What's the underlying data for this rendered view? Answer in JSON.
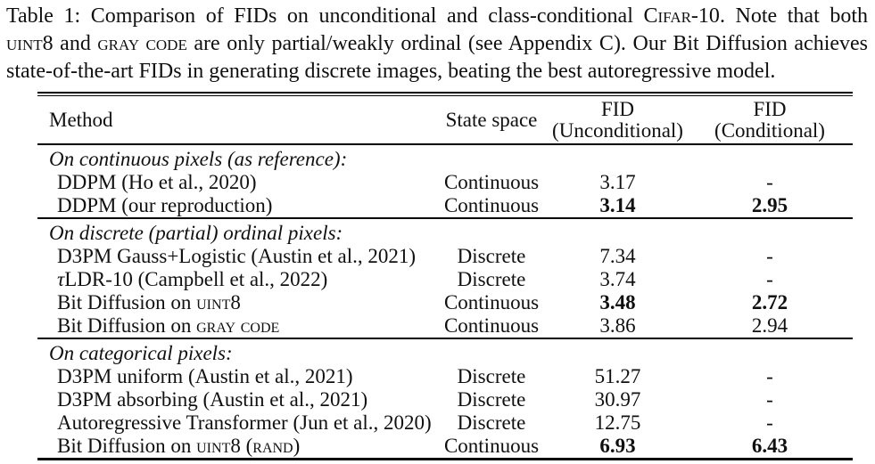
{
  "colors": {
    "text": "#101010",
    "background": "#ffffff",
    "rule": "#000000"
  },
  "caption": {
    "lines": [
      {
        "segments": [
          {
            "t": "Table 1: Comparison of FIDs on unconditional and class-conditional "
          },
          {
            "t": "Cifar-10",
            "s": "sc"
          },
          {
            "t": ". Note that both"
          }
        ]
      },
      {
        "segments": [
          {
            "t": "uint8",
            "s": "sc"
          },
          {
            "t": " and "
          },
          {
            "t": "gray code",
            "s": "sc"
          },
          {
            "t": " are only partial/weakly ordinal (see Appendix C). Our Bit Diffusion achieves"
          }
        ]
      },
      {
        "segments": [
          {
            "t": "state-of-the-art FIDs in generating discrete images, beating the best autoregressive model."
          }
        ]
      }
    ]
  },
  "table": {
    "columns": {
      "method": "Method",
      "state_space": "State space",
      "fid_unconditional": [
        "FID",
        "(Unconditional)"
      ],
      "fid_conditional": [
        "FID",
        "(Conditional)"
      ]
    },
    "sections": [
      {
        "title": "On continuous pixels (as reference):",
        "rows": [
          {
            "method": [
              {
                "t": "DDPM (Ho et al., 2020)"
              }
            ],
            "state_space": "Continuous",
            "fid_unconditional": "3.17",
            "fid_conditional": "-",
            "bold_fids": false
          },
          {
            "method": [
              {
                "t": "DDPM (our reproduction)"
              }
            ],
            "state_space": "Continuous",
            "fid_unconditional": "3.14",
            "fid_conditional": "2.95",
            "bold_fids": true
          }
        ]
      },
      {
        "title": "On discrete (partial) ordinal pixels:",
        "rows": [
          {
            "method": [
              {
                "t": "D3PM Gauss+Logistic (Austin et al., 2021)"
              }
            ],
            "state_space": "Discrete",
            "fid_unconditional": "7.34",
            "fid_conditional": "-",
            "bold_fids": false
          },
          {
            "method": [
              {
                "t": "τ",
                "s": "it"
              },
              {
                "t": "LDR-10 (Campbell et al., 2022)"
              }
            ],
            "state_space": "Discrete",
            "fid_unconditional": "3.74",
            "fid_conditional": "-",
            "bold_fids": false
          },
          {
            "method": [
              {
                "t": "Bit Diffusion on "
              },
              {
                "t": "uint8",
                "s": "sc"
              }
            ],
            "state_space": "Continuous",
            "fid_unconditional": "3.48",
            "fid_conditional": "2.72",
            "bold_fids": true
          },
          {
            "method": [
              {
                "t": "Bit Diffusion on "
              },
              {
                "t": "gray code",
                "s": "sc"
              }
            ],
            "state_space": "Continuous",
            "fid_unconditional": "3.86",
            "fid_conditional": "2.94",
            "bold_fids": false
          }
        ]
      },
      {
        "title": "On categorical pixels:",
        "rows": [
          {
            "method": [
              {
                "t": "D3PM uniform (Austin et al., 2021)"
              }
            ],
            "state_space": "Discrete",
            "fid_unconditional": "51.27",
            "fid_conditional": "-",
            "bold_fids": false
          },
          {
            "method": [
              {
                "t": "D3PM absorbing (Austin et al., 2021)"
              }
            ],
            "state_space": "Discrete",
            "fid_unconditional": "30.97",
            "fid_conditional": "-",
            "bold_fids": false
          },
          {
            "method": [
              {
                "t": "Autoregressive Transformer (Jun et al., 2020)"
              }
            ],
            "state_space": "Discrete",
            "fid_unconditional": "12.75",
            "fid_conditional": "-",
            "bold_fids": false
          },
          {
            "method": [
              {
                "t": "Bit Diffusion on "
              },
              {
                "t": "uint8",
                "s": "sc"
              },
              {
                "t": " ("
              },
              {
                "t": "rand",
                "s": "sc"
              },
              {
                "t": ")"
              }
            ],
            "state_space": "Continuous",
            "fid_unconditional": "6.93",
            "fid_conditional": "6.43",
            "bold_fids": true
          }
        ]
      }
    ]
  }
}
